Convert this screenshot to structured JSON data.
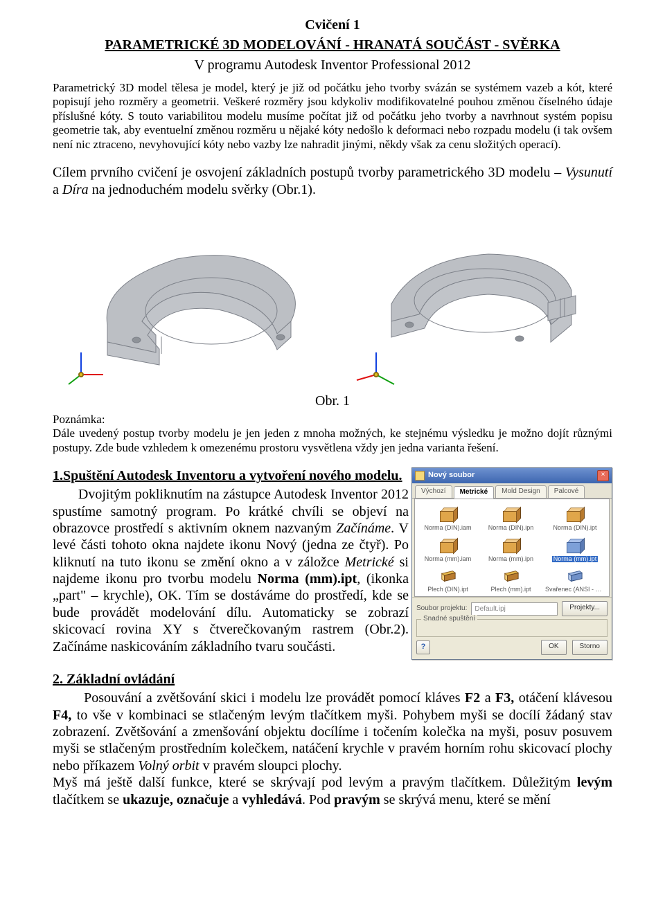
{
  "header": {
    "title": "Cvičení 1",
    "subtitle": "PARAMETRICKÉ 3D MODELOVÁNÍ - HRANATÁ SOUČÁST - SVĚRKA",
    "program": "V programu Autodesk Inventor Professional 2012"
  },
  "intro_small": "Parametrický 3D model tělesa je model, který je již od počátku jeho tvorby svázán se systémem vazeb a kót, které popisují jeho rozměry a geometrii. Veškeré rozměry jsou kdykoliv modifikovatelné pouhou změnou číselného údaje příslušné kóty. S touto variabilitou modelu musíme počítat již od počátku jeho tvorby a navrhnout systém popisu geometrie tak, aby eventuelní změnou rozměru u nějaké kóty nedošlo k deformaci nebo rozpadu modelu (i tak ovšem není nic ztraceno, nevyhovující kóty nebo vazby lze nahradit jinými, někdy však za cenu složitých operací).",
  "intro_big": {
    "pre": "Cílem prvního cvičení je osvojení základních postupů tvorby parametrického 3D modelu – ",
    "i1": "Vysunutí",
    "mid": " a ",
    "i2": "Díra",
    "post": " na jednoduchém modelu svěrky (Obr.1)."
  },
  "figure": {
    "caption": "Obr. 1",
    "model_color": "#bcbfc4",
    "model_edge": "#7e828a",
    "axis": {
      "x": "#e01010",
      "y": "#10a010",
      "z": "#1040e0"
    }
  },
  "note": {
    "label": "Poznámka:",
    "text": "Dále uvedený postup tvorby modelu je jen jeden z mnoha možných, ke stejnému výsledku je možno dojít různými postupy. Zde bude vzhledem k omezenému prostoru vysvětlena vždy jen jedna varianta řešení."
  },
  "sec1": {
    "heading": "1.Spuštění Autodesk Inventoru a vytvoření nového modelu.",
    "body_parts": {
      "p1": "Dvojitým pokliknutím na zástupce Autodesk Inventor 2012 spustíme samotný program. Po krátké chvíli se objeví na obrazovce prostředí s aktivním oknem nazvaným ",
      "i1": "Začínáme",
      "p2": ". V levé části tohoto okna najdete ikonu Nový (jedna ze čtyř). Po kliknutí na tuto ikonu se změní okno a v záložce ",
      "i2": "Metrické",
      "p3": " si najdeme ikonu pro tvorbu modelu ",
      "b1": "Norma (mm).ipt",
      "p4": ", (ikonka „part\" – krychle), OK. Tím se dostáváme do prostředí, kde se bude provádět modelování dílu. Automaticky se zobrazí skicovací rovina XY s čtverečkovaným rastrem (Obr.2). Začínáme naskicováním základního tvaru součásti."
    }
  },
  "dialog": {
    "title": "Nový soubor",
    "close": "×",
    "tabs": [
      "Výchozí",
      "Metrické",
      "Mold Design",
      "Palcové"
    ],
    "active_tab": 1,
    "items": [
      {
        "label": "Norma (DIN).iam",
        "kind": "cube",
        "variant": "orange",
        "selected": false
      },
      {
        "label": "Norma (DIN).ipn",
        "kind": "cube",
        "variant": "orange",
        "selected": false
      },
      {
        "label": "Norma (DIN).ipt",
        "kind": "cube",
        "variant": "orange",
        "selected": false
      },
      {
        "label": "Norma (mm).iam",
        "kind": "cube",
        "variant": "orange",
        "selected": false
      },
      {
        "label": "Norma (mm).ipn",
        "kind": "cube",
        "variant": "orange",
        "selected": false
      },
      {
        "label": "Norma (mm).ipt",
        "kind": "cube",
        "variant": "blue",
        "selected": true
      },
      {
        "label": "Plech (DIN).ipt",
        "kind": "sheet",
        "variant": "orange",
        "selected": false
      },
      {
        "label": "Plech (mm).ipt",
        "kind": "sheet",
        "variant": "orange",
        "selected": false
      },
      {
        "label": "Svařenec (ANSI - mm).iam",
        "kind": "sheet",
        "variant": "blue",
        "selected": false
      }
    ],
    "project_label": "Soubor projektu:",
    "project_value": "Default.ipj",
    "projects_btn": "Projekty...",
    "group_title": "Snadné spuštění",
    "help": "?",
    "ok": "OK",
    "cancel": "Storno"
  },
  "sec2": {
    "heading": "2. Základní ovládání",
    "body_parts": {
      "p1": "Posouvání a zvětšování skici i modelu lze provádět pomocí kláves  ",
      "b1": "F2",
      "p2": " a ",
      "b2": "F3,",
      "p3": " otáčení klávesou ",
      "b3": "F4,",
      "p4": " to vše v kombinaci se stlačeným levým tlačítkem myši. Pohybem myši se docílí žádaný stav zobrazení. Zvětšování a zmenšování objektu docílíme i točením kolečka na myši, posuv posuvem myši se stlačeným prostředním kolečkem, natáčení krychle v pravém horním rohu skicovací plochy nebo příkazem ",
      "i1": "Volný orbit",
      "p5": " v pravém sloupci plochy.",
      "p6": "Myš má ještě další funkce, které se skrývají pod levým a pravým tlačítkem. Důležitým ",
      "b4": "levým",
      "p7": " tlačítkem se ",
      "b5": "ukazuje, označuje",
      "p8": " a ",
      "b6": "vyhledává",
      "p9": ". Pod ",
      "b7": "pravým",
      "p10": " se skrývá menu, které se mění"
    }
  }
}
